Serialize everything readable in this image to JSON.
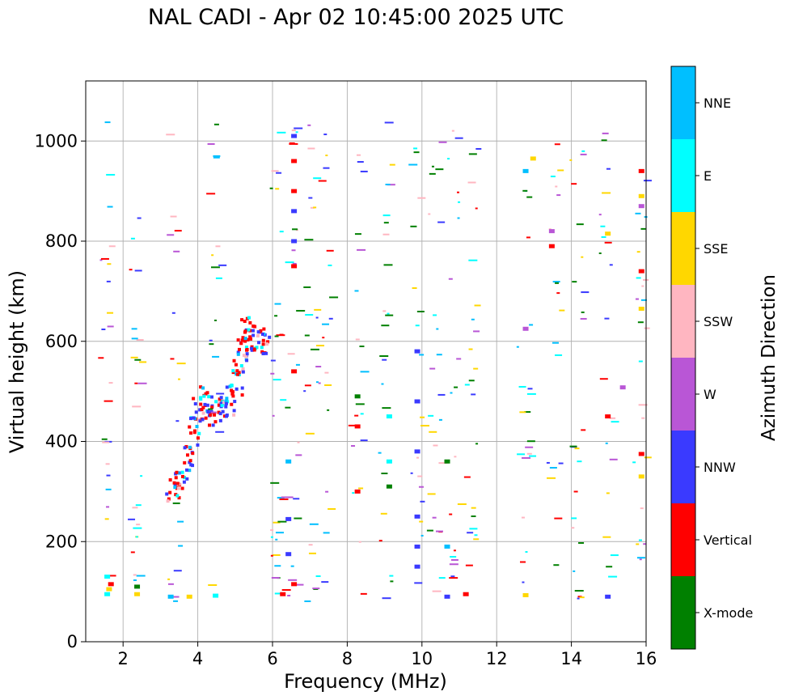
{
  "chart_data": {
    "type": "scatter",
    "title": "NAL CADI - Apr 02 10:45:00 2025 UTC",
    "xlabel": "Frequency (MHz)",
    "ylabel": "Virtual height (km)",
    "xlim": [
      1.0,
      16.0
    ],
    "ylim": [
      0,
      1120
    ],
    "xticks": [
      2,
      4,
      6,
      8,
      10,
      12,
      14,
      16
    ],
    "yticks": [
      0,
      200,
      400,
      600,
      800,
      1000
    ],
    "grid": true,
    "colorbar": {
      "label": "Azimuth Direction",
      "categories": [
        {
          "name": "X-mode",
          "color": "#008000"
        },
        {
          "name": "Vertical",
          "color": "#ff0000"
        },
        {
          "name": "NNW",
          "color": "#3a3aff"
        },
        {
          "name": "W",
          "color": "#b956d6"
        },
        {
          "name": "SSW",
          "color": "#ffb6c1"
        },
        {
          "name": "SSE",
          "color": "#ffd700"
        },
        {
          "name": "E",
          "color": "#00ffff"
        },
        {
          "name": "NNE",
          "color": "#00bfff"
        }
      ]
    },
    "trace": {
      "description": "main F-layer trace",
      "points": [
        [
          3.3,
          310
        ],
        [
          3.5,
          330
        ],
        [
          3.7,
          370
        ],
        [
          3.9,
          420
        ],
        [
          4.0,
          470
        ],
        [
          4.2,
          480
        ],
        [
          4.4,
          460
        ],
        [
          4.6,
          470
        ],
        [
          4.8,
          480
        ],
        [
          5.0,
          520
        ],
        [
          5.1,
          560
        ],
        [
          5.2,
          600
        ],
        [
          5.3,
          620
        ],
        [
          5.5,
          600
        ],
        [
          5.7,
          600
        ]
      ],
      "spread_mhz": 0.35,
      "spread_km": 30
    },
    "scatter_seed": 20250402,
    "scatter_count": 420,
    "scatter_columns_mhz": [
      1.5,
      2.3,
      3.3,
      4.4,
      6.1,
      6.5,
      7.0,
      7.4,
      8.2,
      9.0,
      9.8,
      10.3,
      10.8,
      11.3,
      12.7,
      13.5,
      14.1,
      14.9,
      15.8
    ],
    "marks": [
      {
        "x": 1.5,
        "y": 95,
        "c": 6
      },
      {
        "x": 1.55,
        "y": 105,
        "c": 5
      },
      {
        "x": 1.6,
        "y": 115,
        "c": 1
      },
      {
        "x": 1.5,
        "y": 130,
        "c": 6
      },
      {
        "x": 2.3,
        "y": 95,
        "c": 5
      },
      {
        "x": 2.3,
        "y": 110,
        "c": 0
      },
      {
        "x": 3.2,
        "y": 90,
        "c": 7
      },
      {
        "x": 3.7,
        "y": 90,
        "c": 5
      },
      {
        "x": 4.4,
        "y": 92,
        "c": 6
      },
      {
        "x": 6.5,
        "y": 1010,
        "c": 2
      },
      {
        "x": 6.5,
        "y": 960,
        "c": 1
      },
      {
        "x": 6.5,
        "y": 900,
        "c": 1
      },
      {
        "x": 6.5,
        "y": 860,
        "c": 2
      },
      {
        "x": 6.5,
        "y": 800,
        "c": 2
      },
      {
        "x": 6.5,
        "y": 750,
        "c": 1
      },
      {
        "x": 6.5,
        "y": 540,
        "c": 1
      },
      {
        "x": 6.35,
        "y": 360,
        "c": 7
      },
      {
        "x": 6.35,
        "y": 175,
        "c": 2
      },
      {
        "x": 6.2,
        "y": 95,
        "c": 1
      },
      {
        "x": 6.5,
        "y": 115,
        "c": 1
      },
      {
        "x": 6.35,
        "y": 245,
        "c": 2
      },
      {
        "x": 8.2,
        "y": 490,
        "c": 0
      },
      {
        "x": 8.2,
        "y": 430,
        "c": 1
      },
      {
        "x": 8.2,
        "y": 300,
        "c": 1
      },
      {
        "x": 9.05,
        "y": 360,
        "c": 6
      },
      {
        "x": 9.05,
        "y": 310,
        "c": 0
      },
      {
        "x": 9.05,
        "y": 450,
        "c": 6
      },
      {
        "x": 9.8,
        "y": 580,
        "c": 2
      },
      {
        "x": 9.8,
        "y": 480,
        "c": 2
      },
      {
        "x": 9.8,
        "y": 380,
        "c": 2
      },
      {
        "x": 9.8,
        "y": 250,
        "c": 2
      },
      {
        "x": 9.8,
        "y": 190,
        "c": 2
      },
      {
        "x": 9.8,
        "y": 150,
        "c": 2
      },
      {
        "x": 10.6,
        "y": 360,
        "c": 0
      },
      {
        "x": 10.6,
        "y": 190,
        "c": 7
      },
      {
        "x": 10.6,
        "y": 90,
        "c": 2
      },
      {
        "x": 11.1,
        "y": 95,
        "c": 1
      },
      {
        "x": 12.7,
        "y": 940,
        "c": 7
      },
      {
        "x": 12.7,
        "y": 625,
        "c": 3
      },
      {
        "x": 12.7,
        "y": 93,
        "c": 5
      },
      {
        "x": 12.9,
        "y": 965,
        "c": 5
      },
      {
        "x": 13.4,
        "y": 820,
        "c": 3
      },
      {
        "x": 13.4,
        "y": 790,
        "c": 1
      },
      {
        "x": 14.9,
        "y": 815,
        "c": 5
      },
      {
        "x": 14.9,
        "y": 450,
        "c": 1
      },
      {
        "x": 15.3,
        "y": 508,
        "c": 3
      },
      {
        "x": 14.9,
        "y": 90,
        "c": 2
      },
      {
        "x": 15.8,
        "y": 740,
        "c": 1
      },
      {
        "x": 15.8,
        "y": 665,
        "c": 5
      },
      {
        "x": 15.8,
        "y": 375,
        "c": 1
      },
      {
        "x": 15.8,
        "y": 890,
        "c": 5
      },
      {
        "x": 15.8,
        "y": 870,
        "c": 3
      },
      {
        "x": 15.8,
        "y": 940,
        "c": 1
      },
      {
        "x": 15.8,
        "y": 330,
        "c": 5
      }
    ]
  }
}
